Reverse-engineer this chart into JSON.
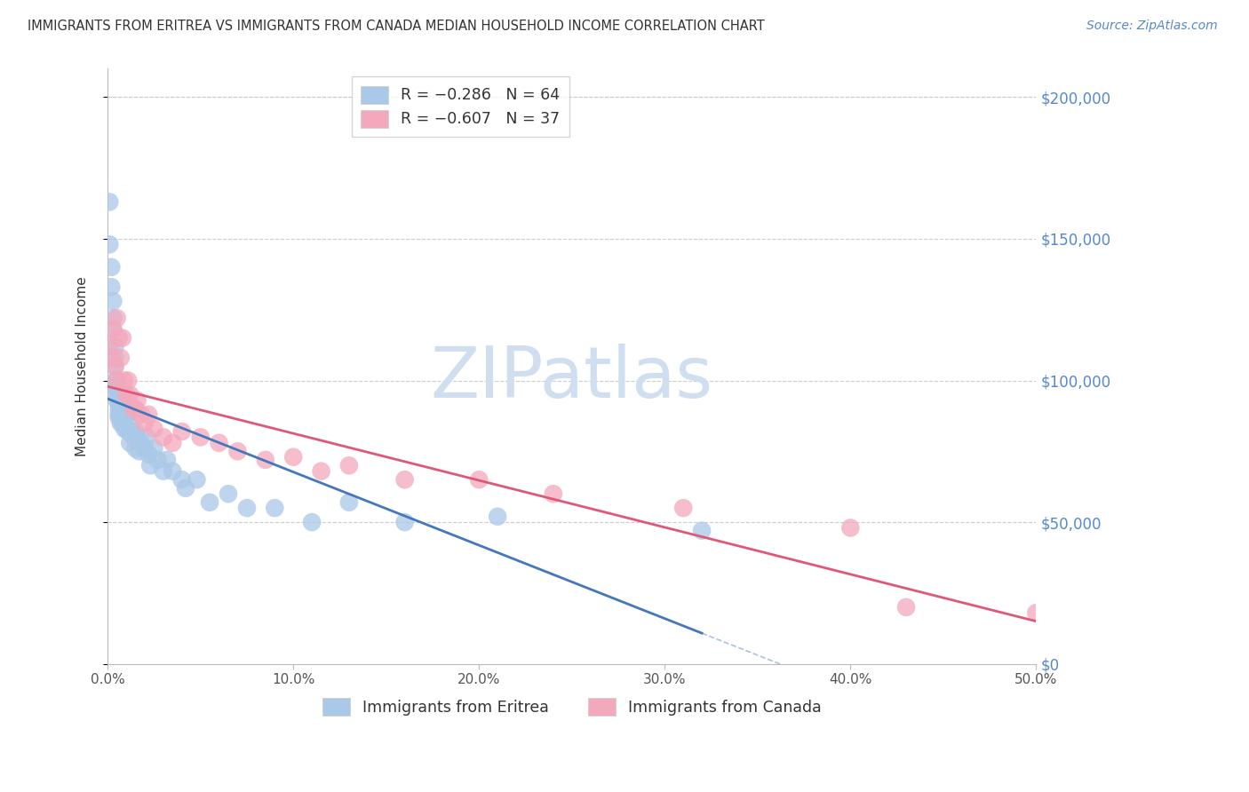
{
  "title": "IMMIGRANTS FROM ERITREA VS IMMIGRANTS FROM CANADA MEDIAN HOUSEHOLD INCOME CORRELATION CHART",
  "source": "Source: ZipAtlas.com",
  "ylabel": "Median Household Income",
  "ytick_values": [
    0,
    50000,
    100000,
    150000,
    200000
  ],
  "xtick_values": [
    0.0,
    0.1,
    0.2,
    0.3,
    0.4,
    0.5
  ],
  "xlim": [
    0.0,
    0.5
  ],
  "ylim": [
    0,
    210000
  ],
  "background_color": "#ffffff",
  "grid_color": "#cccccc",
  "watermark_text": "ZIPatlas",
  "watermark_color": "#d0dff0",
  "legend_entries": [
    {
      "label": "R = −0.286   N = 64",
      "color": "#aac8e8"
    },
    {
      "label": "R = −0.607   N = 37",
      "color": "#f4a8bc"
    }
  ],
  "bottom_legend": [
    {
      "label": "Immigrants from Eritrea",
      "color": "#aac8e8"
    },
    {
      "label": "Immigrants from Canada",
      "color": "#f4a8bc"
    }
  ],
  "series": [
    {
      "name": "Immigrants from Eritrea",
      "line_color": "#4477bb",
      "scatter_color": "#aac8e8",
      "x": [
        0.001,
        0.001,
        0.002,
        0.002,
        0.003,
        0.003,
        0.003,
        0.004,
        0.004,
        0.004,
        0.004,
        0.005,
        0.005,
        0.005,
        0.005,
        0.005,
        0.006,
        0.006,
        0.006,
        0.006,
        0.007,
        0.007,
        0.007,
        0.007,
        0.008,
        0.008,
        0.008,
        0.009,
        0.009,
        0.009,
        0.01,
        0.01,
        0.011,
        0.011,
        0.012,
        0.012,
        0.013,
        0.014,
        0.015,
        0.015,
        0.016,
        0.017,
        0.018,
        0.02,
        0.021,
        0.022,
        0.023,
        0.025,
        0.027,
        0.03,
        0.032,
        0.035,
        0.04,
        0.042,
        0.048,
        0.055,
        0.065,
        0.075,
        0.09,
        0.11,
        0.13,
        0.16,
        0.21,
        0.32
      ],
      "y": [
        163000,
        148000,
        140000,
        133000,
        128000,
        122000,
        118000,
        112000,
        108000,
        105000,
        100000,
        100000,
        98000,
        97000,
        95000,
        93000,
        92000,
        90000,
        88000,
        87000,
        95000,
        92000,
        88000,
        85000,
        95000,
        90000,
        85000,
        90000,
        87000,
        83000,
        88000,
        83000,
        88000,
        82000,
        84000,
        78000,
        82000,
        80000,
        82000,
        76000,
        80000,
        75000,
        78000,
        76000,
        80000,
        74000,
        70000,
        76000,
        72000,
        68000,
        72000,
        68000,
        65000,
        62000,
        65000,
        57000,
        60000,
        55000,
        55000,
        50000,
        57000,
        50000,
        52000,
        47000
      ]
    },
    {
      "name": "Immigrants from Canada",
      "line_color": "#e05878",
      "scatter_color": "#f4a8bc",
      "x": [
        0.001,
        0.002,
        0.003,
        0.004,
        0.005,
        0.005,
        0.006,
        0.007,
        0.008,
        0.009,
        0.01,
        0.011,
        0.012,
        0.014,
        0.015,
        0.016,
        0.018,
        0.02,
        0.022,
        0.025,
        0.03,
        0.035,
        0.04,
        0.05,
        0.06,
        0.07,
        0.085,
        0.1,
        0.115,
        0.13,
        0.16,
        0.2,
        0.24,
        0.31,
        0.4,
        0.43,
        0.5
      ],
      "y": [
        112000,
        108000,
        118000,
        105000,
        122000,
        100000,
        115000,
        108000,
        115000,
        100000,
        95000,
        100000,
        95000,
        90000,
        90000,
        93000,
        88000,
        85000,
        88000,
        83000,
        80000,
        78000,
        82000,
        80000,
        78000,
        75000,
        72000,
        73000,
        68000,
        70000,
        65000,
        65000,
        60000,
        55000,
        48000,
        20000,
        18000
      ]
    }
  ]
}
